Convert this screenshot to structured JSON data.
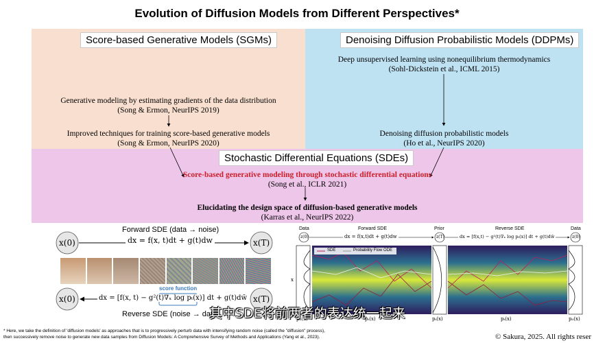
{
  "title": "Evolution of Diffusion Models from Different Perspectives*",
  "sgm": {
    "label": "Score-based Generative Models (SGMs)",
    "paper1_title": "Generative modeling by estimating gradients of the data distribution",
    "paper1_ref": "(Song & Ermon, NeurIPS 2019)",
    "paper2_title": "Improved techniques for training score-based generative models",
    "paper2_ref": "(Song & Ermon, NeurIPS 2020)"
  },
  "ddpm": {
    "label": "Denoising Diffusion Probabilistic Models (DDPMs)",
    "paper1_title": "Deep unsupervised learning using nonequilibrium thermodynamics",
    "paper1_ref": "(Sohl-Dickstein et al., ICML 2015)",
    "paper2_title": "Denoising diffusion probabilistic models",
    "paper2_ref": "(Ho et al., NeurIPS 2020)"
  },
  "sde": {
    "label": "Stochastic Differential Equations (SDEs)",
    "paper1_title": "Score-based generative modeling through stochastic differential equations",
    "paper1_ref": "(Song et al., ICLR 2021)",
    "paper2_title": "Elucidating the design space of diffusion-based generative models",
    "paper2_ref": "(Karras et al., NeurIPS 2022)"
  },
  "left_figure": {
    "forward_label": "Forward SDE (data → noise)",
    "x0": "x(0)",
    "xT": "x(T)",
    "forward_eq": "dx = f(x, t)dt + g(t)dw",
    "score_function": "score function",
    "reverse_eq": "dx = [f(x, t) − g²(t)∇ₓ log pₜ(x)] dt + g(t)dw̄",
    "reverse_label": "Reverse SDE (noise → data)"
  },
  "right_figure": {
    "data_left": "Data",
    "forward_sde": "Forward SDE",
    "prior": "Prior",
    "reverse_sde": "Reverse SDE",
    "data_right": "Data",
    "z0_left": "z(0)",
    "zT": "z(T)",
    "z0_right": "z(0)",
    "forward_eq": "dx = f(x,t)dt + g(t)dw",
    "reverse_eq": "dx = [f(x,t) − g²(t)∇ₓ log pₜ(x)] dt + g(t)dw̄",
    "legend_sde": "SDE",
    "legend_ode": "Probability Flow ODE",
    "axis_x": "x",
    "p0": "p₀(x)",
    "pt": "pₜ(x)",
    "pT": "pₜ(x)",
    "pt2": "pₜ(x)",
    "p0b": "p₀(x)"
  },
  "footnote_line1": "* Here, we take the definition of 'diffusion models' as approaches that is to progressively perturb data with intensifying random noise (called the \"diffusion\" process),",
  "footnote_line2": "then successively remove noise to generate new data samples from Diffusion Models: A Comprehensive Survey of Methods and Applications (Yang et al., 2023).",
  "subtitle_overlay": "其中SDE将前两者的表达统一起来",
  "copyright": "© Sakura, 2025. All rights reser",
  "colors": {
    "sgm_bg": "#f8dfcf",
    "ddpm_bg": "#bfe2f3",
    "sde_bg": "#eec6ea",
    "red": "#cc1f2a"
  }
}
